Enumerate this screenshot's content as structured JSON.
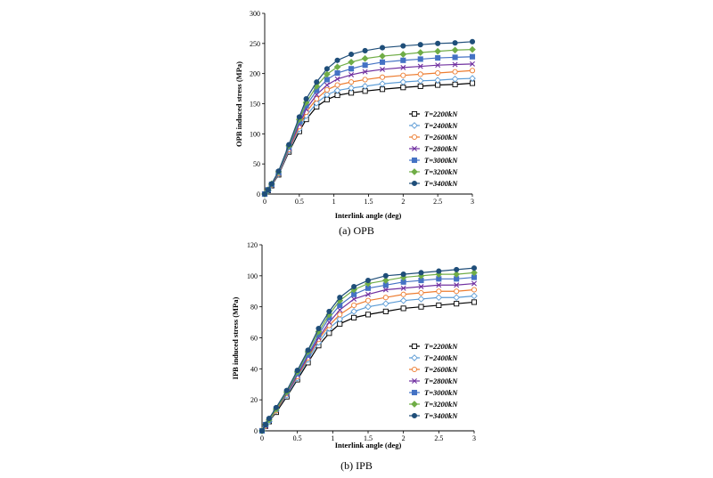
{
  "chart_data": [
    {
      "type": "line",
      "caption": "(a)  OPB",
      "xlabel": "Interlink angle (deg)",
      "ylabel": "OPB induced stress (MPa)",
      "xlim": [
        0,
        3
      ],
      "ylim": [
        0,
        300
      ],
      "xticks": [
        "0",
        "0.5",
        "1",
        "1.5",
        "2",
        "2.5",
        "3"
      ],
      "yticks": [
        "0",
        "50",
        "100",
        "150",
        "200",
        "250",
        "300"
      ],
      "grid": false,
      "legend_position": "bottom-right",
      "x": [
        0,
        0.05,
        0.1,
        0.2,
        0.35,
        0.5,
        0.6,
        0.75,
        0.9,
        1.05,
        1.25,
        1.45,
        1.7,
        2.0,
        2.25,
        2.5,
        2.75,
        3.0
      ],
      "series": [
        {
          "name": "T=2200kN",
          "color": "#000000",
          "marker": "square-open",
          "values": [
            0,
            6,
            14,
            32,
            70,
            104,
            124,
            145,
            157,
            164,
            168,
            171,
            174,
            177,
            179,
            181,
            182,
            184
          ]
        },
        {
          "name": "T=2400kN",
          "color": "#5b9bd5",
          "marker": "diamond-open",
          "values": [
            0,
            6,
            15,
            33,
            72,
            108,
            130,
            151,
            165,
            172,
            176,
            179,
            183,
            186,
            188,
            189,
            191,
            192
          ]
        },
        {
          "name": "T=2600kN",
          "color": "#ed7d31",
          "marker": "circle-open",
          "values": [
            0,
            7,
            15,
            34,
            74,
            112,
            136,
            158,
            173,
            181,
            186,
            190,
            194,
            197,
            199,
            201,
            203,
            205
          ]
        },
        {
          "name": "T=2800kN",
          "color": "#7030a0",
          "marker": "x",
          "values": [
            0,
            7,
            16,
            35,
            76,
            116,
            141,
            165,
            181,
            191,
            198,
            203,
            207,
            210,
            212,
            214,
            215,
            216
          ]
        },
        {
          "name": "T=3000kN",
          "color": "#4472c4",
          "marker": "square",
          "values": [
            0,
            7,
            16,
            36,
            78,
            120,
            147,
            172,
            190,
            201,
            208,
            214,
            219,
            222,
            224,
            226,
            227,
            228
          ]
        },
        {
          "name": "T=3200kN",
          "color": "#70ad47",
          "marker": "diamond",
          "values": [
            0,
            7,
            17,
            37,
            80,
            124,
            152,
            179,
            199,
            211,
            219,
            225,
            229,
            232,
            235,
            237,
            239,
            240
          ]
        },
        {
          "name": "T=3400kN",
          "color": "#1f4e79",
          "marker": "circle",
          "values": [
            0,
            7,
            17,
            38,
            82,
            128,
            158,
            186,
            208,
            222,
            232,
            238,
            243,
            246,
            248,
            250,
            251,
            253
          ]
        }
      ]
    },
    {
      "type": "line",
      "caption": "(b)  IPB",
      "xlabel": "Interlink angle (deg)",
      "ylabel": "IPB induced stress (MPa)",
      "xlim": [
        0,
        3
      ],
      "ylim": [
        0,
        120
      ],
      "xticks": [
        "0",
        "0.5",
        "1",
        "1.5",
        "2",
        "2.5",
        "3"
      ],
      "yticks": [
        "0",
        "20",
        "40",
        "60",
        "80",
        "100",
        "120"
      ],
      "grid": false,
      "legend_position": "bottom-right",
      "x": [
        0,
        0.05,
        0.1,
        0.2,
        0.35,
        0.5,
        0.65,
        0.8,
        0.95,
        1.1,
        1.3,
        1.5,
        1.75,
        2.0,
        2.25,
        2.5,
        2.75,
        3.0
      ],
      "series": [
        {
          "name": "T=2200kN",
          "color": "#000000",
          "marker": "square-open",
          "values": [
            0,
            3,
            6,
            12,
            22,
            33,
            44,
            55,
            63,
            69,
            73,
            75,
            77,
            79,
            80,
            81,
            82,
            83
          ]
        },
        {
          "name": "T=2400kN",
          "color": "#5b9bd5",
          "marker": "diamond-open",
          "values": [
            0,
            3,
            6,
            13,
            23,
            34,
            46,
            57,
            66,
            72,
            77,
            80,
            82,
            84,
            85,
            86,
            86,
            87
          ]
        },
        {
          "name": "T=2600kN",
          "color": "#ed7d31",
          "marker": "circle-open",
          "values": [
            0,
            3,
            7,
            13,
            24,
            35,
            47,
            59,
            68,
            75,
            81,
            84,
            86,
            88,
            89,
            90,
            90,
            91
          ]
        },
        {
          "name": "T=2800kN",
          "color": "#7030a0",
          "marker": "x",
          "values": [
            0,
            3,
            7,
            14,
            24,
            36,
            48,
            60,
            70,
            78,
            85,
            88,
            91,
            92,
            93,
            94,
            94,
            95
          ]
        },
        {
          "name": "T=3000kN",
          "color": "#4472c4",
          "marker": "square",
          "values": [
            0,
            4,
            7,
            14,
            25,
            37,
            49,
            62,
            73,
            81,
            88,
            92,
            94,
            96,
            97,
            98,
            98,
            99
          ]
        },
        {
          "name": "T=3200kN",
          "color": "#70ad47",
          "marker": "diamond",
          "values": [
            0,
            4,
            7,
            14,
            25,
            38,
            51,
            64,
            75,
            84,
            91,
            95,
            97,
            99,
            100,
            101,
            101,
            102
          ]
        },
        {
          "name": "T=3400kN",
          "color": "#1f4e79",
          "marker": "circle",
          "values": [
            0,
            4,
            8,
            15,
            26,
            39,
            52,
            66,
            77,
            86,
            93,
            97,
            100,
            101,
            102,
            103,
            104,
            105
          ]
        }
      ]
    }
  ]
}
